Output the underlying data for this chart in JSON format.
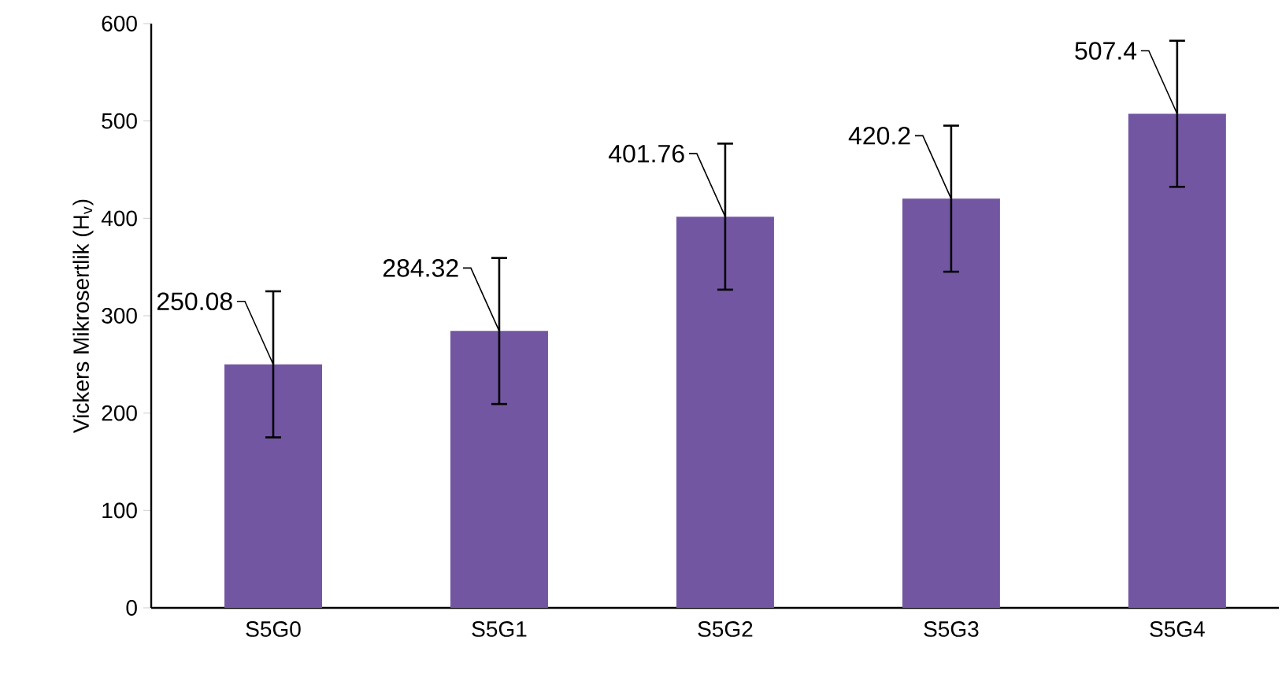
{
  "chart_data": {
    "type": "bar",
    "ylabel": "Vickers Mikrosertlik (H$_{v}$)",
    "categories": [
      "S5G0",
      "S5G1",
      "S5G2",
      "S5G3",
      "S5G4"
    ],
    "values": [
      250.08,
      284.32,
      401.76,
      420.2,
      507.4
    ],
    "errors": [
      75,
      75,
      75,
      75,
      75
    ],
    "color": "#7356a2",
    "ylim": [
      0,
      600
    ],
    "yticks": [
      0,
      100,
      200,
      300,
      400,
      500,
      600
    ],
    "grid": false,
    "data_labels": true
  }
}
